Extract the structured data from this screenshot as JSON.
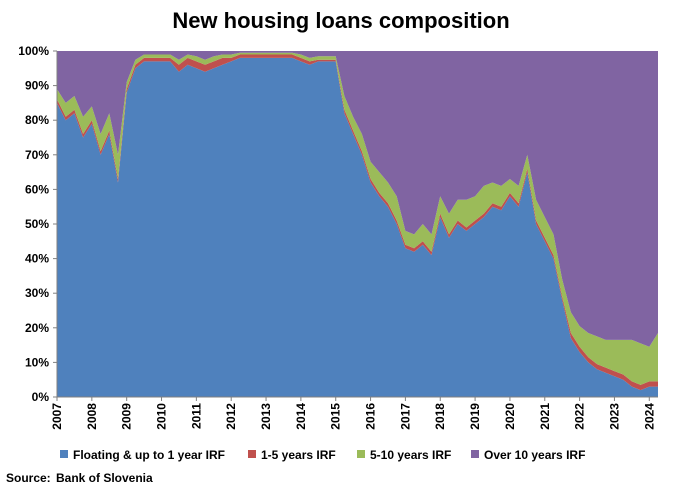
{
  "chart_data": {
    "type": "area",
    "stacked": true,
    "title": "New housing loans composition",
    "source_label": "Source:",
    "source_text": "Bank of Slovenia",
    "ylim": [
      0,
      100
    ],
    "yticks": [
      "0%",
      "10%",
      "20%",
      "30%",
      "40%",
      "50%",
      "60%",
      "70%",
      "80%",
      "90%",
      "100%"
    ],
    "x_start": 2007.0,
    "x_end": 2024.25,
    "xticks": [
      "2007",
      "2008",
      "2009",
      "2010",
      "2011",
      "2012",
      "2013",
      "2014",
      "2015",
      "2016",
      "2017",
      "2018",
      "2019",
      "2020",
      "2021",
      "2022",
      "2023",
      "2024"
    ],
    "x": [
      2007.0,
      2007.25,
      2007.5,
      2007.75,
      2008.0,
      2008.25,
      2008.5,
      2008.75,
      2009.0,
      2009.25,
      2009.5,
      2009.75,
      2010.0,
      2010.25,
      2010.5,
      2010.75,
      2011.0,
      2011.25,
      2011.5,
      2011.75,
      2012.0,
      2012.25,
      2012.5,
      2012.75,
      2013.0,
      2013.25,
      2013.5,
      2013.75,
      2014.0,
      2014.25,
      2014.5,
      2014.75,
      2015.0,
      2015.25,
      2015.5,
      2015.75,
      2016.0,
      2016.25,
      2016.5,
      2016.75,
      2017.0,
      2017.25,
      2017.5,
      2017.75,
      2018.0,
      2018.25,
      2018.5,
      2018.75,
      2019.0,
      2019.25,
      2019.5,
      2019.75,
      2020.0,
      2020.25,
      2020.5,
      2020.75,
      2021.0,
      2021.25,
      2021.5,
      2021.75,
      2022.0,
      2022.25,
      2022.5,
      2022.75,
      2023.0,
      2023.25,
      2023.5,
      2023.75,
      2024.0,
      2024.25
    ],
    "series": [
      {
        "name": "Floating & up to 1 year IRF",
        "color": "#4f81bd",
        "values": [
          85,
          80,
          82,
          75,
          79,
          70,
          76,
          62,
          88,
          95,
          97,
          97,
          97,
          97,
          94,
          96,
          95,
          94,
          95,
          96,
          97,
          98,
          98,
          98,
          98,
          98,
          98,
          98,
          97,
          96,
          97,
          97,
          97,
          82,
          76,
          70,
          62,
          58,
          55,
          50,
          43,
          42,
          44,
          41,
          52,
          46,
          50,
          48,
          50,
          52,
          55,
          54,
          58,
          55,
          65,
          50,
          45,
          40,
          28,
          17,
          13,
          10,
          8,
          7,
          6,
          5,
          3,
          2,
          3,
          3
        ]
      },
      {
        "name": "1-5 years IRF",
        "color": "#c0504d",
        "values": [
          1,
          1,
          1,
          1,
          1,
          1,
          1,
          1,
          1,
          1,
          1,
          1,
          1,
          1,
          2,
          2,
          2,
          2,
          2,
          2,
          1,
          1,
          1,
          1,
          1,
          1,
          1,
          1,
          1,
          1,
          0.5,
          0.5,
          0.5,
          1,
          1,
          1,
          1,
          1,
          1,
          1,
          1,
          1,
          1,
          1,
          1,
          1,
          1,
          1,
          1,
          1,
          1,
          1,
          1,
          1,
          1,
          1,
          1,
          1,
          1,
          1.5,
          1.5,
          1.5,
          1.5,
          1.5,
          1.5,
          1.5,
          1.5,
          1.5,
          1.5,
          1.5
        ]
      },
      {
        "name": "5-10 years IRF",
        "color": "#9bbb59",
        "values": [
          3,
          4,
          4,
          5,
          4,
          5,
          5,
          7,
          2,
          1.5,
          1,
          1,
          1,
          1,
          1.5,
          1,
          1.5,
          1.5,
          1.5,
          1,
          1,
          0.5,
          0.5,
          0.5,
          0.5,
          0.5,
          0.5,
          0.5,
          1,
          1,
          1,
          1,
          1,
          4,
          4,
          5,
          5,
          6,
          6,
          7,
          4,
          4,
          5,
          5,
          5,
          6,
          6,
          8,
          7,
          8,
          6,
          6,
          4,
          5,
          4,
          6,
          6,
          6,
          5,
          6,
          6,
          7,
          8,
          8,
          9,
          10,
          12,
          12,
          10,
          14
        ]
      },
      {
        "name": "Over 10 years IRF",
        "color": "#8064a2",
        "values": [
          11,
          15,
          13,
          19,
          16,
          24,
          18,
          30,
          9,
          2.5,
          1,
          1,
          1,
          1,
          2.5,
          1,
          1.5,
          2.5,
          1.5,
          1,
          1,
          0.5,
          0.5,
          0.5,
          0.5,
          0.5,
          0.5,
          0.5,
          1,
          2,
          1.5,
          1.5,
          1.5,
          13,
          19,
          24,
          32,
          35,
          38,
          42,
          52,
          53,
          50,
          53,
          42,
          47,
          43,
          43,
          42,
          39,
          38,
          39,
          37,
          39,
          30,
          43,
          48,
          53,
          66,
          75.5,
          79.5,
          81.5,
          82.5,
          83.5,
          83.5,
          83.5,
          83.5,
          84.5,
          85.5,
          81.5
        ]
      }
    ],
    "legend_position": "bottom",
    "grid": false
  }
}
